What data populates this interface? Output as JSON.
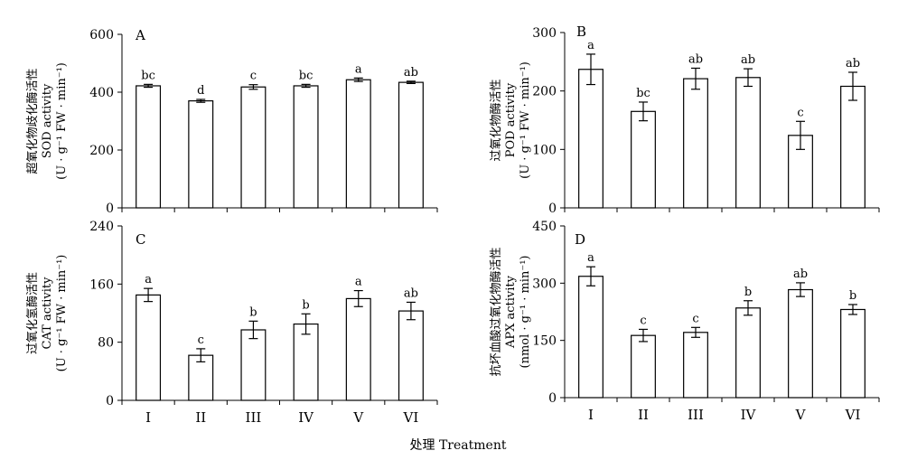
{
  "xlabel": "处理 Treatment",
  "categories": [
    "I",
    "II",
    "III",
    "IV",
    "V",
    "VI"
  ],
  "chart_data": [
    {
      "type": "bar",
      "panel": "A",
      "title": "",
      "xlabel": "",
      "ylabel": [
        "超氧化物歧化酶活性",
        "SOD activity",
        "(U · g⁻¹ FW · min⁻¹)"
      ],
      "ylim": [
        0,
        600
      ],
      "yticks": [
        0,
        200,
        400,
        600
      ],
      "categories": [
        "I",
        "II",
        "III",
        "IV",
        "V",
        "VI"
      ],
      "values": [
        422,
        370,
        418,
        422,
        443,
        434
      ],
      "errors": [
        5,
        5,
        8,
        5,
        6,
        4
      ],
      "significance": [
        "bc",
        "d",
        "c",
        "bc",
        "a",
        "ab"
      ],
      "grid": false,
      "show_category_labels": false
    },
    {
      "type": "bar",
      "panel": "B",
      "title": "",
      "xlabel": "",
      "ylabel": [
        "过氧化物酶活性",
        "POD activity",
        "(U · g⁻¹ FW · min⁻¹)"
      ],
      "ylim": [
        0,
        300
      ],
      "yticks": [
        0,
        100,
        200,
        300
      ],
      "categories": [
        "I",
        "II",
        "III",
        "IV",
        "V",
        "VI"
      ],
      "values": [
        237,
        165,
        221,
        223,
        124,
        208
      ],
      "errors": [
        26,
        16,
        18,
        15,
        24,
        24
      ],
      "significance": [
        "a",
        "bc",
        "ab",
        "ab",
        "c",
        "ab"
      ],
      "grid": false,
      "show_category_labels": false
    },
    {
      "type": "bar",
      "panel": "C",
      "title": "",
      "xlabel": "",
      "ylabel": [
        "过氧化氢酶活性",
        "CAT activity",
        "(U · g⁻¹ FW · min⁻¹)"
      ],
      "ylim": [
        0,
        240
      ],
      "yticks": [
        0,
        80,
        160,
        240
      ],
      "categories": [
        "I",
        "II",
        "III",
        "IV",
        "V",
        "VI"
      ],
      "values": [
        145,
        62,
        97,
        105,
        140,
        123
      ],
      "errors": [
        9,
        9,
        12,
        14,
        11,
        12
      ],
      "significance": [
        "a",
        "c",
        "b",
        "b",
        "a",
        "ab"
      ],
      "grid": false,
      "show_category_labels": true
    },
    {
      "type": "bar",
      "panel": "D",
      "title": "",
      "xlabel": "",
      "ylabel": [
        "抗坏血酸过氧化物酶活性",
        "APX activity",
        "(nmol · g⁻¹ · min⁻¹)"
      ],
      "ylim": [
        0,
        450
      ],
      "yticks": [
        0,
        150,
        300,
        450
      ],
      "categories": [
        "I",
        "II",
        "III",
        "IV",
        "V",
        "VI"
      ],
      "values": [
        318,
        163,
        171,
        235,
        283,
        231
      ],
      "errors": [
        25,
        16,
        13,
        19,
        18,
        13
      ],
      "significance": [
        "a",
        "c",
        "c",
        "b",
        "ab",
        "b"
      ],
      "grid": false,
      "show_category_labels": true
    }
  ]
}
